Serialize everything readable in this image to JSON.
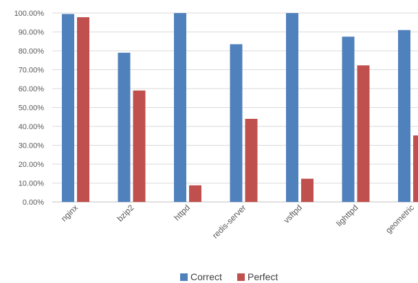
{
  "chart_data": {
    "type": "bar",
    "categories": [
      "nginx",
      "bzip2",
      "httpd",
      "redis-server",
      "vsftpd",
      "lighttpd",
      "geometric"
    ],
    "series": [
      {
        "name": "Correct",
        "color": "#4f81bd",
        "values": [
          99.5,
          79.0,
          100.0,
          83.5,
          100.0,
          87.5,
          91.0
        ]
      },
      {
        "name": "Perfect",
        "color": "#c0504d",
        "values": [
          97.8,
          59.0,
          8.8,
          44.0,
          12.3,
          72.3,
          35.2
        ]
      }
    ],
    "ylim": [
      0,
      100
    ],
    "yticks": [
      "0.00%",
      "10.00%",
      "20.00%",
      "30.00%",
      "40.00%",
      "50.00%",
      "60.00%",
      "70.00%",
      "80.00%",
      "90.00%",
      "100.00%"
    ],
    "grid": true,
    "legend": "bottom",
    "title": "",
    "xlabel": "",
    "ylabel": ""
  }
}
